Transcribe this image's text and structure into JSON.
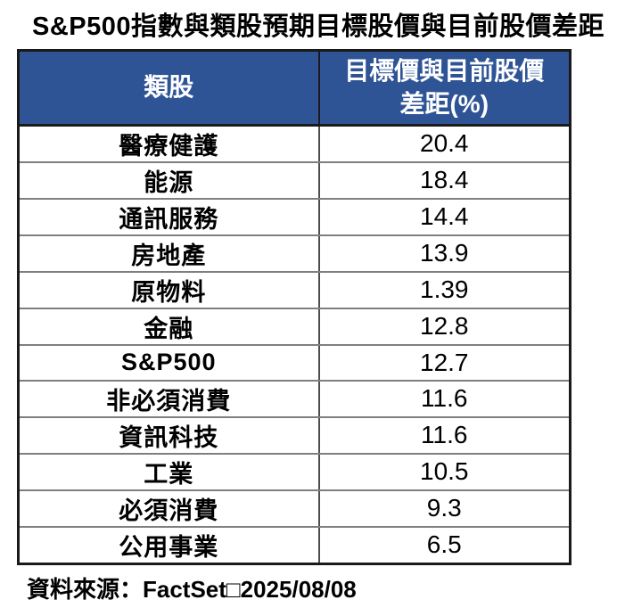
{
  "title": "S&P500指數與類股預期目標股價與目前股價差距",
  "table": {
    "header": {
      "col1": "類股",
      "col2": "目標價與目前股價\n差距(%)"
    },
    "rows": [
      {
        "sector": "醫療健護",
        "value": "20.4"
      },
      {
        "sector": "能源",
        "value": "18.4"
      },
      {
        "sector": "通訊服務",
        "value": "14.4"
      },
      {
        "sector": "房地產",
        "value": "13.9"
      },
      {
        "sector": "原物料",
        "value": "1.39"
      },
      {
        "sector": "金融",
        "value": "12.8"
      },
      {
        "sector": "S&P500",
        "value": "12.7"
      },
      {
        "sector": "非必須消費",
        "value": "11.6"
      },
      {
        "sector": "資訊科技",
        "value": "11.6"
      },
      {
        "sector": "工業",
        "value": "10.5"
      },
      {
        "sector": "必須消費",
        "value": "9.3"
      },
      {
        "sector": "公用事業",
        "value": "6.5"
      }
    ]
  },
  "footer": {
    "source": "資料來源：FactSet□2025/08/08"
  },
  "colors": {
    "header_bg": "#2F5496",
    "header_text": "#FFFFFF",
    "outer_border": "#1A1A1A",
    "row_line": "#7F7F7F",
    "divider": "#4D4D4D",
    "title_color": "#000000"
  },
  "chart_data": {
    "type": "table",
    "title": "S&P500指數與類股預期目標股價與目前股價差距",
    "columns": [
      "類股",
      "目標價與目前股價差距(%)"
    ],
    "categories": [
      "醫療健護",
      "能源",
      "通訊服務",
      "房地產",
      "原物料",
      "金融",
      "S&P500",
      "非必須消費",
      "資訊科技",
      "工業",
      "必須消費",
      "公用事業"
    ],
    "values": [
      20.4,
      18.4,
      14.4,
      13.9,
      1.39,
      12.8,
      12.7,
      11.6,
      11.6,
      10.5,
      9.3,
      6.5
    ],
    "source": "資料來源：FactSet□2025/08/08"
  }
}
